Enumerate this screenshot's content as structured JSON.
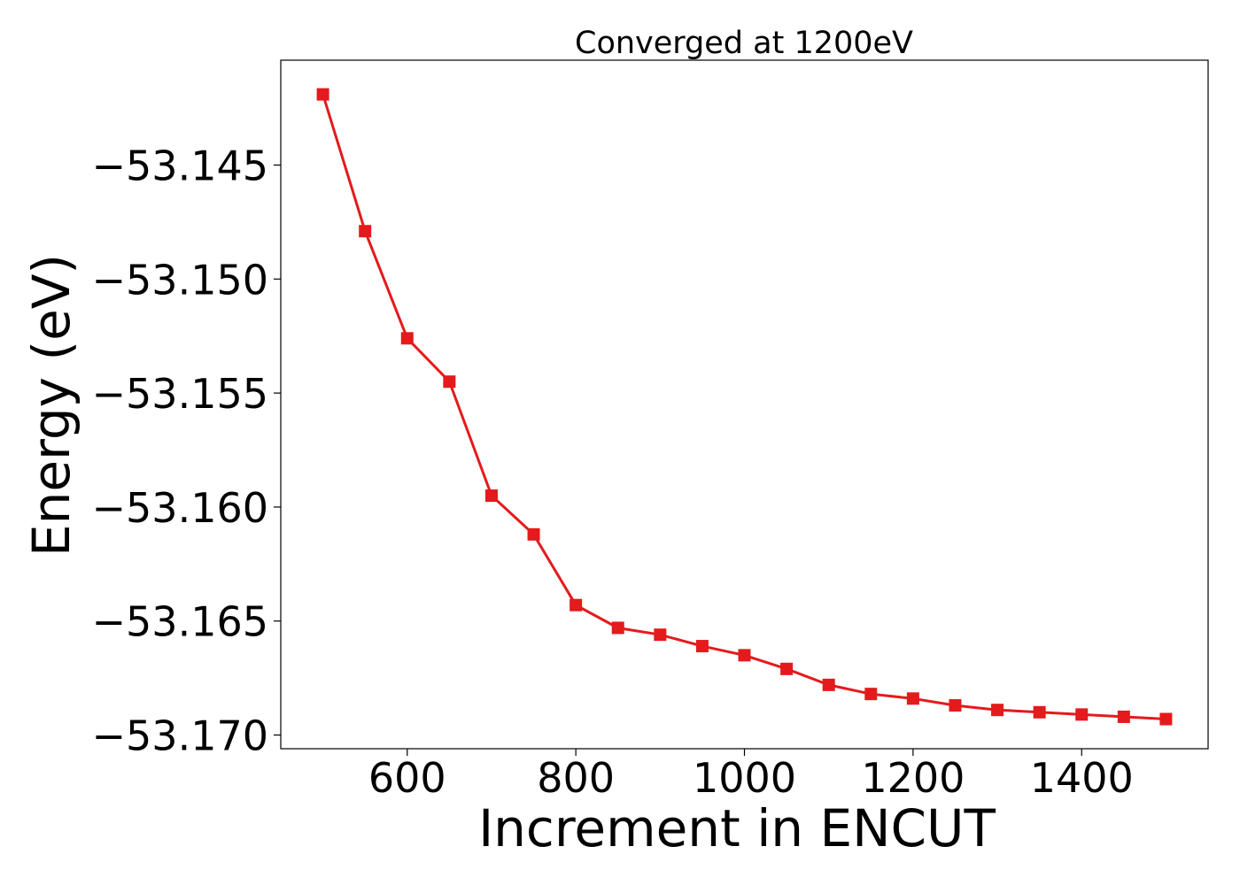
{
  "chart_data": {
    "type": "line",
    "title": "Converged at 1200eV",
    "xlabel": "Increment in ENCUT",
    "ylabel": "Energy (eV)",
    "xlim": [
      450,
      1550
    ],
    "ylim": [
      -53.1706,
      -53.1404
    ],
    "xticks": [
      600,
      800,
      1000,
      1200,
      1400
    ],
    "xtick_labels": [
      "600",
      "800",
      "1000",
      "1200",
      "1400"
    ],
    "yticks": [
      -53.145,
      -53.15,
      -53.155,
      -53.16,
      -53.165,
      -53.17
    ],
    "ytick_labels": [
      "−53.145",
      "−53.150",
      "−53.155",
      "−53.160",
      "−53.165",
      "−53.170"
    ],
    "grid": false,
    "series": [
      {
        "color": "#e41a1c",
        "marker": "square",
        "x": [
          500,
          550,
          600,
          650,
          700,
          750,
          800,
          850,
          900,
          950,
          1000,
          1050,
          1100,
          1150,
          1200,
          1250,
          1300,
          1350,
          1400,
          1450,
          1500
        ],
        "y": [
          -53.1419,
          -53.1479,
          -53.1526,
          -53.1545,
          -53.1595,
          -53.1612,
          -53.1643,
          -53.1653,
          -53.1656,
          -53.1661,
          -53.1665,
          -53.1671,
          -53.1678,
          -53.1682,
          -53.1684,
          -53.1687,
          -53.1689,
          -53.169,
          -53.1691,
          -53.1692,
          -53.1693
        ]
      }
    ]
  }
}
